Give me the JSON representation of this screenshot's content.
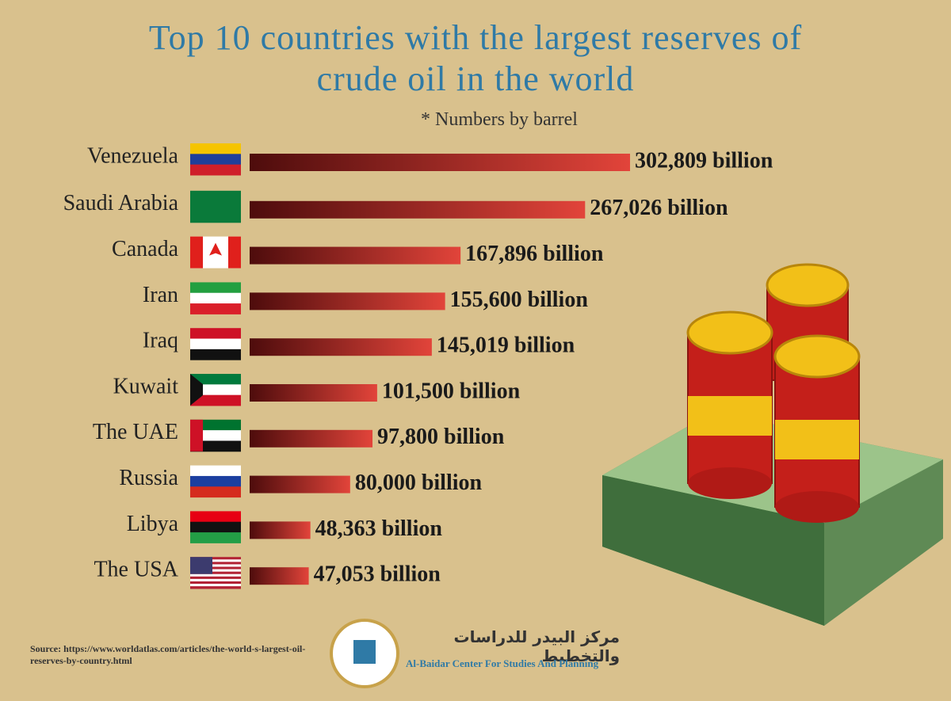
{
  "chart_data": {
    "type": "bar",
    "title": "Top 10 countries with the largest reserves of crude oil in the world",
    "subtitle": "* Numbers by barrel",
    "categories": [
      "Venezuela",
      "Saudi Arabia",
      "Canada",
      "Iran",
      "Iraq",
      "Kuwait",
      "The UAE",
      "Russia",
      "Libya",
      "The USA"
    ],
    "values": [
      302809,
      267026,
      167896,
      155600,
      145019,
      101500,
      97800,
      80000,
      48363,
      47053
    ],
    "value_labels": [
      "302,809 billion",
      "267,026 billion",
      "167,896 billion",
      "155,600 billion",
      "145,019 billion",
      "101,500 billion",
      "97,800 billion",
      "80,000 billion",
      "48,363 billion",
      "47,053 billion"
    ],
    "source": "Source: https://www.worldatlas.com/articles/the-world-s-largest-oil-reserves-by-country.html",
    "logo_arabic": "مركز البيدر للدراسات والتخطيط",
    "logo_english": "Al-Baidar Center For Studies And Planning"
  }
}
